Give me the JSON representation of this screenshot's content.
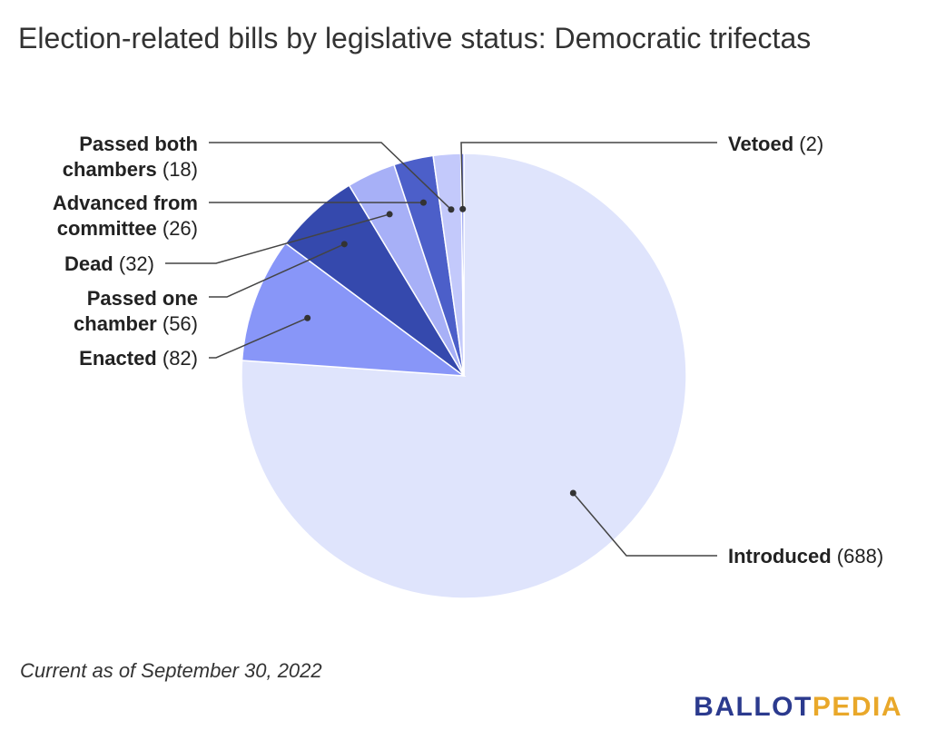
{
  "chart_data": {
    "type": "pie",
    "title": "Election-related bills by legislative status: Democratic trifectas",
    "slices": [
      {
        "label": "Introduced",
        "value": 688,
        "color": "#dfe4fc"
      },
      {
        "label": "Enacted",
        "value": 82,
        "color": "#8896f8"
      },
      {
        "label": "Passed one chamber",
        "value": 56,
        "color": "#3549ad"
      },
      {
        "label": "Dead",
        "value": 32,
        "color": "#a7b0f7"
      },
      {
        "label": "Advanced from committee",
        "value": 26,
        "color": "#4c5fc9"
      },
      {
        "label": "Passed both chambers",
        "value": 18,
        "color": "#c3c9fb"
      },
      {
        "label": "Vetoed",
        "value": 2,
        "color": "#7280ea"
      }
    ],
    "legend": "none"
  },
  "footnote": "Current as of September 30, 2022",
  "logo": {
    "ballot": "BALLOT",
    "pedia": "PEDIA"
  }
}
